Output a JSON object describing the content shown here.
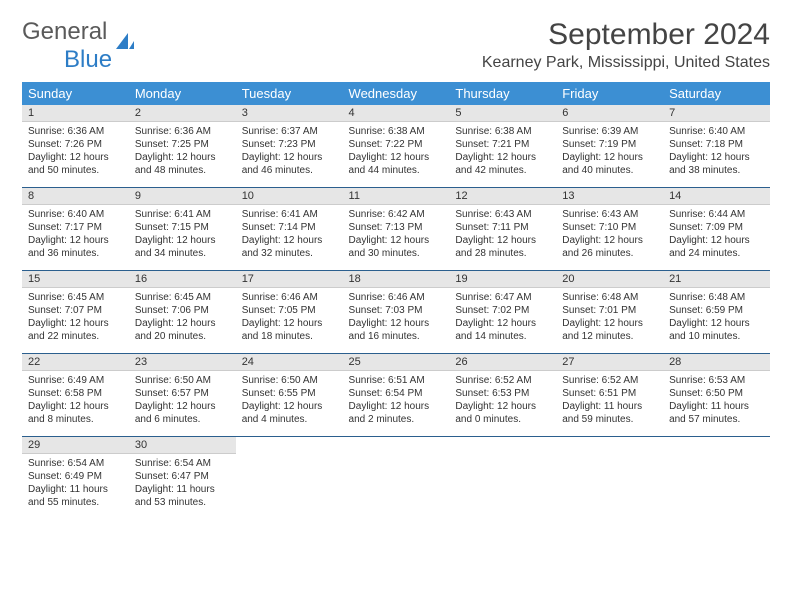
{
  "logo": {
    "part1": "General",
    "part2": "Blue"
  },
  "title": "September 2024",
  "location": "Kearney Park, Mississippi, United States",
  "weekday_headers": [
    "Sunday",
    "Monday",
    "Tuesday",
    "Wednesday",
    "Thursday",
    "Friday",
    "Saturday"
  ],
  "colors": {
    "header_bg": "#3c8fd3",
    "header_text": "#ffffff",
    "daynum_bg": "#e6e6e6",
    "border_dark": "#2b5f8e",
    "logo_gray": "#5a5a5a",
    "logo_blue": "#2d7dc6"
  },
  "weeks": [
    [
      {
        "n": "1",
        "sr": "6:36 AM",
        "ss": "7:26 PM",
        "dl": "12 hours and 50 minutes."
      },
      {
        "n": "2",
        "sr": "6:36 AM",
        "ss": "7:25 PM",
        "dl": "12 hours and 48 minutes."
      },
      {
        "n": "3",
        "sr": "6:37 AM",
        "ss": "7:23 PM",
        "dl": "12 hours and 46 minutes."
      },
      {
        "n": "4",
        "sr": "6:38 AM",
        "ss": "7:22 PM",
        "dl": "12 hours and 44 minutes."
      },
      {
        "n": "5",
        "sr": "6:38 AM",
        "ss": "7:21 PM",
        "dl": "12 hours and 42 minutes."
      },
      {
        "n": "6",
        "sr": "6:39 AM",
        "ss": "7:19 PM",
        "dl": "12 hours and 40 minutes."
      },
      {
        "n": "7",
        "sr": "6:40 AM",
        "ss": "7:18 PM",
        "dl": "12 hours and 38 minutes."
      }
    ],
    [
      {
        "n": "8",
        "sr": "6:40 AM",
        "ss": "7:17 PM",
        "dl": "12 hours and 36 minutes."
      },
      {
        "n": "9",
        "sr": "6:41 AM",
        "ss": "7:15 PM",
        "dl": "12 hours and 34 minutes."
      },
      {
        "n": "10",
        "sr": "6:41 AM",
        "ss": "7:14 PM",
        "dl": "12 hours and 32 minutes."
      },
      {
        "n": "11",
        "sr": "6:42 AM",
        "ss": "7:13 PM",
        "dl": "12 hours and 30 minutes."
      },
      {
        "n": "12",
        "sr": "6:43 AM",
        "ss": "7:11 PM",
        "dl": "12 hours and 28 minutes."
      },
      {
        "n": "13",
        "sr": "6:43 AM",
        "ss": "7:10 PM",
        "dl": "12 hours and 26 minutes."
      },
      {
        "n": "14",
        "sr": "6:44 AM",
        "ss": "7:09 PM",
        "dl": "12 hours and 24 minutes."
      }
    ],
    [
      {
        "n": "15",
        "sr": "6:45 AM",
        "ss": "7:07 PM",
        "dl": "12 hours and 22 minutes."
      },
      {
        "n": "16",
        "sr": "6:45 AM",
        "ss": "7:06 PM",
        "dl": "12 hours and 20 minutes."
      },
      {
        "n": "17",
        "sr": "6:46 AM",
        "ss": "7:05 PM",
        "dl": "12 hours and 18 minutes."
      },
      {
        "n": "18",
        "sr": "6:46 AM",
        "ss": "7:03 PM",
        "dl": "12 hours and 16 minutes."
      },
      {
        "n": "19",
        "sr": "6:47 AM",
        "ss": "7:02 PM",
        "dl": "12 hours and 14 minutes."
      },
      {
        "n": "20",
        "sr": "6:48 AM",
        "ss": "7:01 PM",
        "dl": "12 hours and 12 minutes."
      },
      {
        "n": "21",
        "sr": "6:48 AM",
        "ss": "6:59 PM",
        "dl": "12 hours and 10 minutes."
      }
    ],
    [
      {
        "n": "22",
        "sr": "6:49 AM",
        "ss": "6:58 PM",
        "dl": "12 hours and 8 minutes."
      },
      {
        "n": "23",
        "sr": "6:50 AM",
        "ss": "6:57 PM",
        "dl": "12 hours and 6 minutes."
      },
      {
        "n": "24",
        "sr": "6:50 AM",
        "ss": "6:55 PM",
        "dl": "12 hours and 4 minutes."
      },
      {
        "n": "25",
        "sr": "6:51 AM",
        "ss": "6:54 PM",
        "dl": "12 hours and 2 minutes."
      },
      {
        "n": "26",
        "sr": "6:52 AM",
        "ss": "6:53 PM",
        "dl": "12 hours and 0 minutes."
      },
      {
        "n": "27",
        "sr": "6:52 AM",
        "ss": "6:51 PM",
        "dl": "11 hours and 59 minutes."
      },
      {
        "n": "28",
        "sr": "6:53 AM",
        "ss": "6:50 PM",
        "dl": "11 hours and 57 minutes."
      }
    ],
    [
      {
        "n": "29",
        "sr": "6:54 AM",
        "ss": "6:49 PM",
        "dl": "11 hours and 55 minutes."
      },
      {
        "n": "30",
        "sr": "6:54 AM",
        "ss": "6:47 PM",
        "dl": "11 hours and 53 minutes."
      },
      null,
      null,
      null,
      null,
      null
    ]
  ],
  "labels": {
    "sunrise": "Sunrise:",
    "sunset": "Sunset:",
    "daylight": "Daylight:"
  }
}
